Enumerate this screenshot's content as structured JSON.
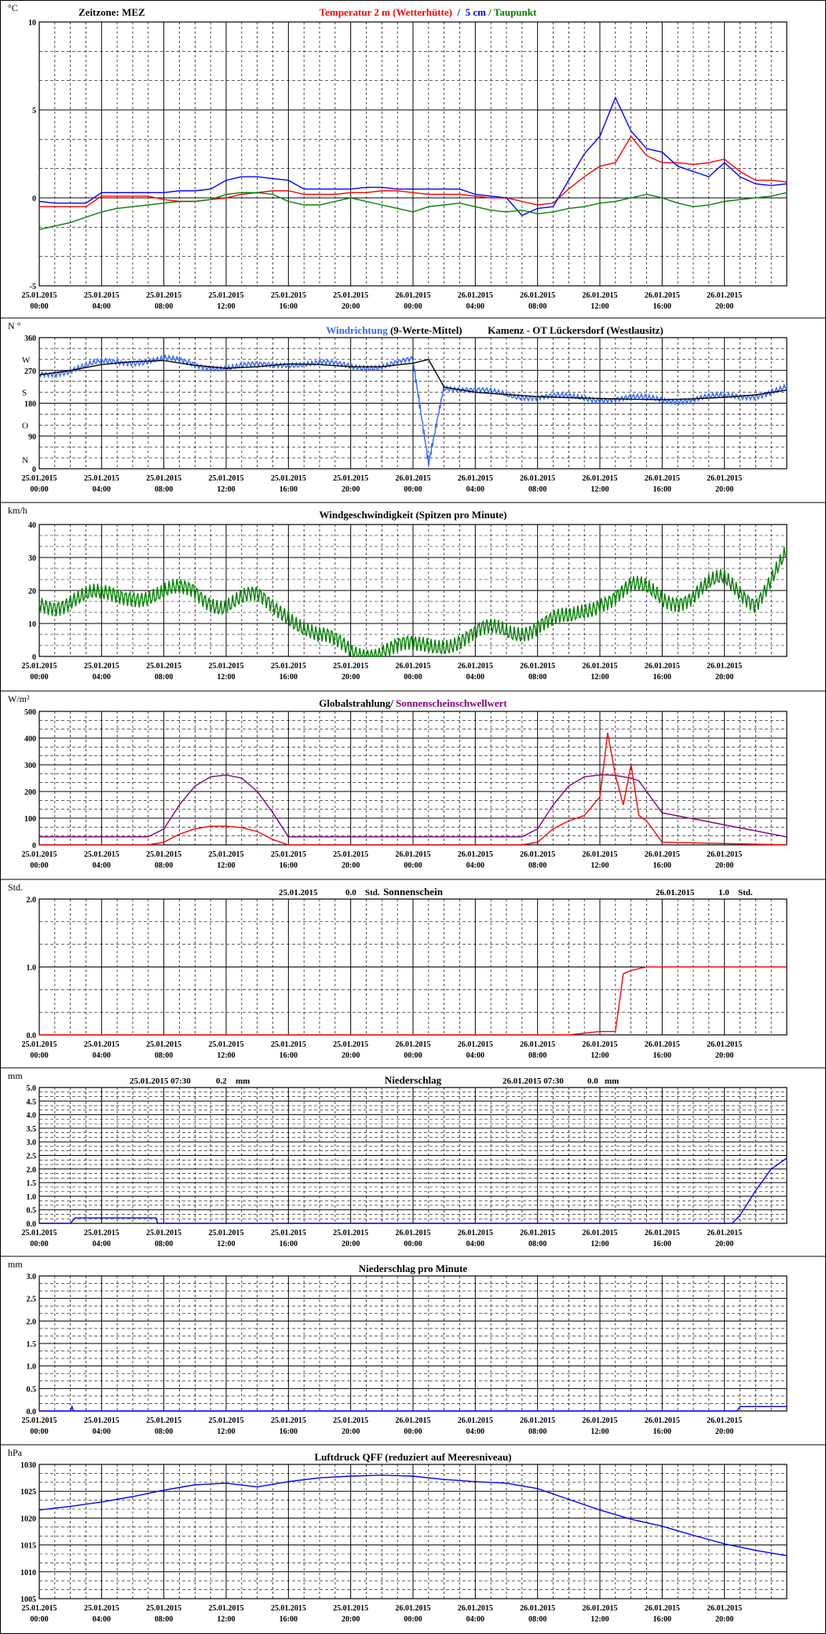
{
  "page": {
    "zone_label": "Zeitzone: MEZ"
  },
  "x_ticks": [
    [
      "25.01.2015",
      "00:00"
    ],
    [
      "25.01.2015",
      "04:00"
    ],
    [
      "25.01.2015",
      "08:00"
    ],
    [
      "25.01.2015",
      "12:00"
    ],
    [
      "25.01.2015",
      "16:00"
    ],
    [
      "25.01.2015",
      "20:00"
    ],
    [
      "26.01.2015",
      "00:00"
    ],
    [
      "26.01.2015",
      "04:00"
    ],
    [
      "26.01.2015",
      "08:00"
    ],
    [
      "26.01.2015",
      "12:00"
    ],
    [
      "26.01.2015",
      "16:00"
    ],
    [
      "26.01.2015",
      "20:00"
    ]
  ],
  "colors": {
    "red": "#ff0000",
    "blue": "#0000ff",
    "green": "#008000",
    "lightblue": "#3366ff",
    "purple": "#800080",
    "black": "#000000"
  },
  "chart_data": [
    {
      "type": "line",
      "unit_label": "°C",
      "title_parts": [
        {
          "text": "Temperatur 2 m (Wetterhütte)",
          "color": "#ff0000"
        },
        {
          "text": "  /  ",
          "color": "#0000ff"
        },
        {
          "text": "5 cm",
          "color": "#0000ff"
        },
        {
          "text": " / ",
          "color": "#008000"
        },
        {
          "text": "Taupunkt",
          "color": "#008000"
        }
      ],
      "ylim": [
        -5,
        10
      ],
      "y_ticks": [
        {
          "v": 10,
          "l": "10"
        },
        {
          "v": 5,
          "l": "5"
        },
        {
          "v": 0,
          "l": "0"
        },
        {
          "v": -5,
          "l": "-5"
        }
      ],
      "x_hours": [
        0,
        1,
        2,
        3,
        4,
        5,
        6,
        7,
        8,
        9,
        10,
        11,
        12,
        13,
        14,
        15,
        16,
        17,
        18,
        19,
        20,
        21,
        22,
        23,
        24,
        25,
        26,
        27,
        28,
        29,
        30,
        31,
        32,
        33,
        34,
        35,
        36,
        37,
        38,
        39,
        40,
        41,
        42,
        43,
        44,
        45,
        46,
        47,
        48
      ],
      "series": [
        {
          "name": "Temperatur 2 m (Wetterhütte)",
          "color": "#ff0000",
          "y": [
            -0.5,
            -0.5,
            -0.5,
            -0.5,
            0.1,
            0.1,
            0.1,
            0.1,
            -0.1,
            -0.2,
            -0.2,
            -0.1,
            0.0,
            0.2,
            0.3,
            0.4,
            0.4,
            0.2,
            0.2,
            0.2,
            0.3,
            0.3,
            0.4,
            0.4,
            0.3,
            0.2,
            0.2,
            0.2,
            0.1,
            0.0,
            0.0,
            -0.2,
            -0.4,
            -0.3,
            0.5,
            1.2,
            1.8,
            2.0,
            3.5,
            2.4,
            2.0,
            2.0,
            1.9,
            2.0,
            2.2,
            1.5,
            1.0,
            1.0,
            0.9
          ]
        },
        {
          "name": "5 cm",
          "color": "#0000ff",
          "y": [
            -0.2,
            -0.3,
            -0.3,
            -0.3,
            0.3,
            0.3,
            0.3,
            0.3,
            0.3,
            0.4,
            0.4,
            0.5,
            1.0,
            1.2,
            1.2,
            1.1,
            1.0,
            0.5,
            0.5,
            0.5,
            0.5,
            0.6,
            0.6,
            0.5,
            0.5,
            0.5,
            0.5,
            0.5,
            0.2,
            0.1,
            0.0,
            -1.0,
            -0.6,
            -0.5,
            1.0,
            2.5,
            3.5,
            5.7,
            3.8,
            2.8,
            2.6,
            1.8,
            1.5,
            1.2,
            2.0,
            1.2,
            0.8,
            0.7,
            0.8
          ]
        },
        {
          "name": "Taupunkt",
          "color": "#008000",
          "y": [
            -1.8,
            -1.6,
            -1.4,
            -1.1,
            -0.8,
            -0.6,
            -0.5,
            -0.4,
            -0.3,
            -0.2,
            -0.2,
            -0.1,
            0.2,
            0.3,
            0.3,
            0.2,
            -0.2,
            -0.4,
            -0.4,
            -0.2,
            0.0,
            -0.2,
            -0.4,
            -0.6,
            -0.8,
            -0.5,
            -0.4,
            -0.3,
            -0.5,
            -0.7,
            -0.8,
            -0.7,
            -0.9,
            -0.8,
            -0.6,
            -0.5,
            -0.3,
            -0.2,
            0.0,
            0.2,
            0.0,
            -0.3,
            -0.5,
            -0.4,
            -0.2,
            -0.1,
            0.0,
            0.1,
            0.3
          ]
        }
      ]
    },
    {
      "type": "line",
      "unit_label": "N °",
      "title_parts": [
        {
          "text": "Windrichtung",
          "color": "#3366ff"
        },
        {
          "text": " (9-Werte-Mittel)",
          "color": "#000000"
        },
        {
          "text": "          Kamenz - OT Lückersdorf (Westlausitz)",
          "color": "#000000"
        }
      ],
      "ylim": [
        0,
        360
      ],
      "y_ticks": [
        {
          "v": 360,
          "l": "360"
        },
        {
          "v": 270,
          "l": "270"
        },
        {
          "v": 180,
          "l": "180"
        },
        {
          "v": 90,
          "l": "90"
        },
        {
          "v": 0,
          "l": "0"
        }
      ],
      "y_letters": [
        {
          "v": 300,
          "l": "W"
        },
        {
          "v": 210,
          "l": "S"
        },
        {
          "v": 120,
          "l": "O"
        },
        {
          "v": 25,
          "l": "N"
        }
      ],
      "x_hours": [
        0,
        2,
        4,
        6,
        8,
        10,
        12,
        14,
        16,
        18,
        20,
        22,
        24,
        25,
        26,
        28,
        30,
        32,
        34,
        36,
        38,
        40,
        42,
        44,
        46,
        48
      ],
      "series": [
        {
          "name": "Windrichtung",
          "color": "#3366ff",
          "y": [
            260,
            272,
            290,
            296,
            300,
            286,
            278,
            282,
            290,
            288,
            282,
            282,
            296,
            15,
            228,
            212,
            205,
            198,
            195,
            194,
            192,
            190,
            192,
            196,
            204,
            220
          ]
        },
        {
          "name": "9-Werte-Mittel",
          "color": "#000000",
          "y": [
            258,
            270,
            286,
            294,
            297,
            284,
            276,
            280,
            288,
            286,
            280,
            280,
            290,
            300,
            224,
            210,
            204,
            198,
            195,
            193,
            191,
            190,
            192,
            196,
            203,
            216
          ]
        }
      ]
    },
    {
      "type": "line",
      "unit_label": "km/h",
      "title_parts": [
        {
          "text": "Windgeschwindigkeit (Spitzen pro Minute)",
          "color": "#000000"
        }
      ],
      "ylim": [
        0,
        40
      ],
      "y_ticks": [
        {
          "v": 40,
          "l": "40"
        },
        {
          "v": 30,
          "l": "30"
        },
        {
          "v": 20,
          "l": "20"
        },
        {
          "v": 10,
          "l": "10"
        },
        {
          "v": 0,
          "l": "0"
        }
      ],
      "x_hours": [
        0,
        2,
        4,
        6,
        8,
        10,
        12,
        14,
        16,
        18,
        20,
        22,
        24,
        26,
        28,
        30,
        32,
        34,
        36,
        38,
        40,
        42,
        44,
        46,
        48
      ],
      "series": [
        {
          "name": "Windgeschwindigkeit",
          "color": "#008000",
          "y": [
            16,
            18,
            17,
            20,
            18,
            20,
            16,
            17,
            14,
            5,
            2,
            2,
            2,
            5,
            6,
            8,
            10,
            10,
            18,
            20,
            18,
            19,
            22,
            18,
            30
          ]
        }
      ]
    },
    {
      "type": "line",
      "unit_label": "W/m²",
      "title_parts": [
        {
          "text": "Globalstrahlung/ ",
          "color": "#000000"
        },
        {
          "text": "Sonnenscheinschwellwert",
          "color": "#800080"
        }
      ],
      "ylim": [
        0,
        500
      ],
      "y_ticks": [
        {
          "v": 500,
          "l": "500"
        },
        {
          "v": 400,
          "l": "400"
        },
        {
          "v": 300,
          "l": "300"
        },
        {
          "v": 200,
          "l": "200"
        },
        {
          "v": 100,
          "l": "100"
        },
        {
          "v": 0,
          "l": "0"
        }
      ],
      "x_hours": [
        0,
        7,
        8,
        9,
        10,
        11,
        12,
        13,
        14,
        15,
        16,
        24,
        31,
        32,
        33,
        34,
        35,
        36,
        36.5,
        37,
        37.5,
        38,
        38.5,
        39,
        40,
        48
      ],
      "series": [
        {
          "name": "Globalstrahlung",
          "color": "#ff0000",
          "y": [
            0,
            0,
            10,
            40,
            60,
            70,
            70,
            65,
            50,
            20,
            0,
            0,
            0,
            10,
            60,
            90,
            110,
            180,
            420,
            260,
            150,
            300,
            110,
            90,
            10,
            0
          ]
        },
        {
          "name": "Sonnenscheinschwellwert",
          "color": "#800080",
          "y": [
            30,
            30,
            60,
            150,
            220,
            255,
            262,
            250,
            200,
            120,
            30,
            30,
            30,
            60,
            150,
            220,
            255,
            262,
            262,
            260,
            255,
            250,
            240,
            200,
            120,
            30
          ]
        }
      ]
    },
    {
      "type": "line",
      "unit_label": "Std.",
      "title_parts": [
        {
          "text": "Sonnenschein",
          "color": "#000000"
        }
      ],
      "header_left": {
        "date": "25.01.2015",
        "value": "0.0",
        "unit": "Std."
      },
      "header_right": {
        "date": "26.01.2015",
        "value": "1.0",
        "unit": "Std."
      },
      "ylim": [
        0,
        2
      ],
      "y_ticks": [
        {
          "v": 2,
          "l": "2.0"
        },
        {
          "v": 1,
          "l": "1.0"
        },
        {
          "v": 0,
          "l": "0.0"
        }
      ],
      "x_hours": [
        0,
        34,
        36,
        37,
        37.5,
        38,
        39,
        40,
        48
      ],
      "series": [
        {
          "name": "Sonnenschein",
          "color": "#ff0000",
          "y": [
            0,
            0,
            0.05,
            0.05,
            0.9,
            0.95,
            1.0,
            1.0,
            1.0
          ]
        }
      ]
    },
    {
      "type": "line",
      "unit_label": "mm",
      "title_parts": [
        {
          "text": "Niederschlag",
          "color": "#000000"
        }
      ],
      "header_left": {
        "date": "25.01.2015 07:30",
        "value": "0.2",
        "unit": "mm"
      },
      "header_right": {
        "date": "26.01.2015 07:30",
        "value": "0.0",
        "unit": "mm"
      },
      "ylim": [
        0,
        5
      ],
      "y_ticks": [
        {
          "v": 5,
          "l": "5.0"
        },
        {
          "v": 4.5,
          "l": "4.5"
        },
        {
          "v": 4,
          "l": "4.0"
        },
        {
          "v": 3.5,
          "l": "3.5"
        },
        {
          "v": 3,
          "l": "3.0"
        },
        {
          "v": 2.5,
          "l": "2.5"
        },
        {
          "v": 2,
          "l": "2.0"
        },
        {
          "v": 1.5,
          "l": "1.5"
        },
        {
          "v": 1,
          "l": "1.0"
        },
        {
          "v": 0.5,
          "l": "0.5"
        },
        {
          "v": 0,
          "l": "0.0"
        }
      ],
      "x_hours": [
        0,
        2,
        2.3,
        7.5,
        7.6,
        44.5,
        45,
        46,
        47,
        48
      ],
      "series": [
        {
          "name": "Niederschlag",
          "color": "#0000ff",
          "y": [
            0,
            0,
            0.2,
            0.2,
            0,
            0,
            0.3,
            1.2,
            2.0,
            2.4
          ]
        }
      ]
    },
    {
      "type": "line",
      "unit_label": "mm",
      "title_parts": [
        {
          "text": "Niederschlag pro Minute",
          "color": "#000000"
        }
      ],
      "ylim": [
        0,
        3
      ],
      "y_ticks": [
        {
          "v": 3,
          "l": "3.0"
        },
        {
          "v": 2.5,
          "l": "2.5"
        },
        {
          "v": 2,
          "l": "2.0"
        },
        {
          "v": 1.5,
          "l": "1.5"
        },
        {
          "v": 1,
          "l": "1.0"
        },
        {
          "v": 0.5,
          "l": "0.5"
        },
        {
          "v": 0,
          "l": "0.0"
        }
      ],
      "x_hours": [
        0,
        2,
        2.1,
        2.2,
        44.8,
        45,
        46,
        47,
        48
      ],
      "series": [
        {
          "name": "Niederschlag pro Minute",
          "color": "#0000ff",
          "y": [
            0,
            0,
            0.1,
            0,
            0,
            0.1,
            0.1,
            0.1,
            0.1
          ]
        }
      ]
    },
    {
      "type": "line",
      "unit_label": "hPa",
      "title_parts": [
        {
          "text": "Luftdruck QFF (reduziert auf Meeresniveau)",
          "color": "#000000"
        }
      ],
      "ylim": [
        1005,
        1030
      ],
      "y_ticks": [
        {
          "v": 1030,
          "l": "1030"
        },
        {
          "v": 1025,
          "l": "1025"
        },
        {
          "v": 1020,
          "l": "1020"
        },
        {
          "v": 1015,
          "l": "1015"
        },
        {
          "v": 1010,
          "l": "1010"
        },
        {
          "v": 1005,
          "l": "1005"
        }
      ],
      "x_hours": [
        0,
        2,
        4,
        6,
        8,
        10,
        12,
        14,
        16,
        18,
        20,
        22,
        24,
        26,
        28,
        30,
        32,
        34,
        36,
        38,
        40,
        42,
        44,
        46,
        48
      ],
      "series": [
        {
          "name": "Luftdruck QFF",
          "color": "#0000ff",
          "y": [
            1021.5,
            1022.2,
            1023,
            1024,
            1025.2,
            1026.2,
            1026.5,
            1025.8,
            1026.8,
            1027.5,
            1027.8,
            1028,
            1027.8,
            1027.2,
            1026.8,
            1026.5,
            1025.5,
            1023.5,
            1021.5,
            1019.8,
            1018.5,
            1016.8,
            1015.2,
            1014,
            1013
          ]
        }
      ]
    }
  ]
}
